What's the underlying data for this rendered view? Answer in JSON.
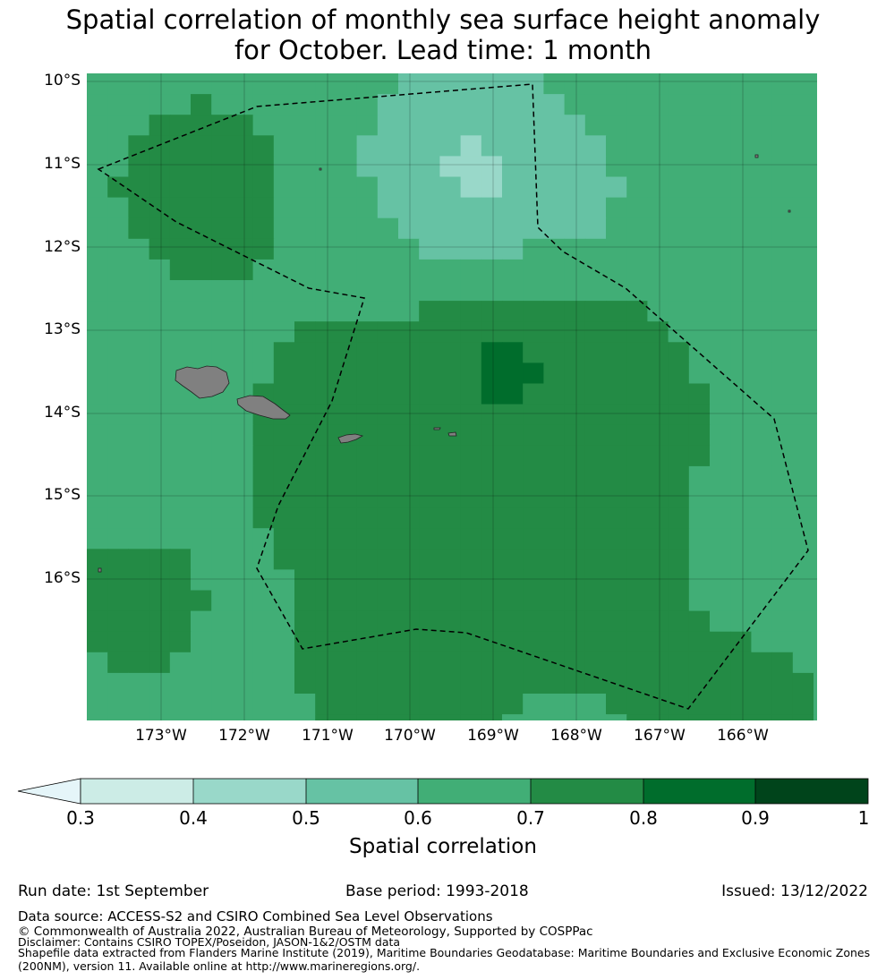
{
  "title": {
    "line1": "Spatial correlation of monthly sea surface height anomaly",
    "line2": "for October. Lead time: 1 month"
  },
  "map": {
    "lat_ticks": [
      "10°S",
      "11°S",
      "12°S",
      "13°S",
      "14°S",
      "15°S",
      "16°S"
    ],
    "lon_ticks": [
      "173°W",
      "172°W",
      "171°W",
      "170°W",
      "169°W",
      "168°W",
      "167°W",
      "166°W"
    ],
    "lon_range": [
      -174.0,
      -165.2
    ],
    "lat_range": [
      -17.7,
      -9.9
    ],
    "land_color": "#808080",
    "eez_line_style": "dashed black"
  },
  "colorbar": {
    "label": "Spatial correlation",
    "ticks": [
      "0.3",
      "0.4",
      "0.5",
      "0.6",
      "0.7",
      "0.8",
      "0.9",
      "1"
    ],
    "colors": [
      "#e5f5f9",
      "#ccece6",
      "#99d8c9",
      "#66c2a4",
      "#41ae76",
      "#238b45",
      "#006d2c",
      "#00441b"
    ],
    "extend": "min"
  },
  "footer": {
    "run_date": "Run date: 1st September",
    "base_period": "Base period: 1993-2018",
    "issued": "Issued: 13/12/2022",
    "data_source": "Data source: ACCESS-S2 and CSIRO Combined Sea Level Observations",
    "copyright": "© Commonwealth of Australia 2022, Australian Bureau of Meteorology, Supported by COSPPac",
    "disclaimer": "Disclaimer: Contains CSIRO TOPEX/Poseidon, JASON-1&2/OSTM data",
    "shapefile1": "Shapefile data extracted from Flanders Marine Institute (2019), Maritime Boundaries Geodatabase: Maritime Boundaries and Exclusive Economic Zones",
    "shapefile2": "(200NM), version 11. Available online at http://www.marineregions.org/."
  }
}
